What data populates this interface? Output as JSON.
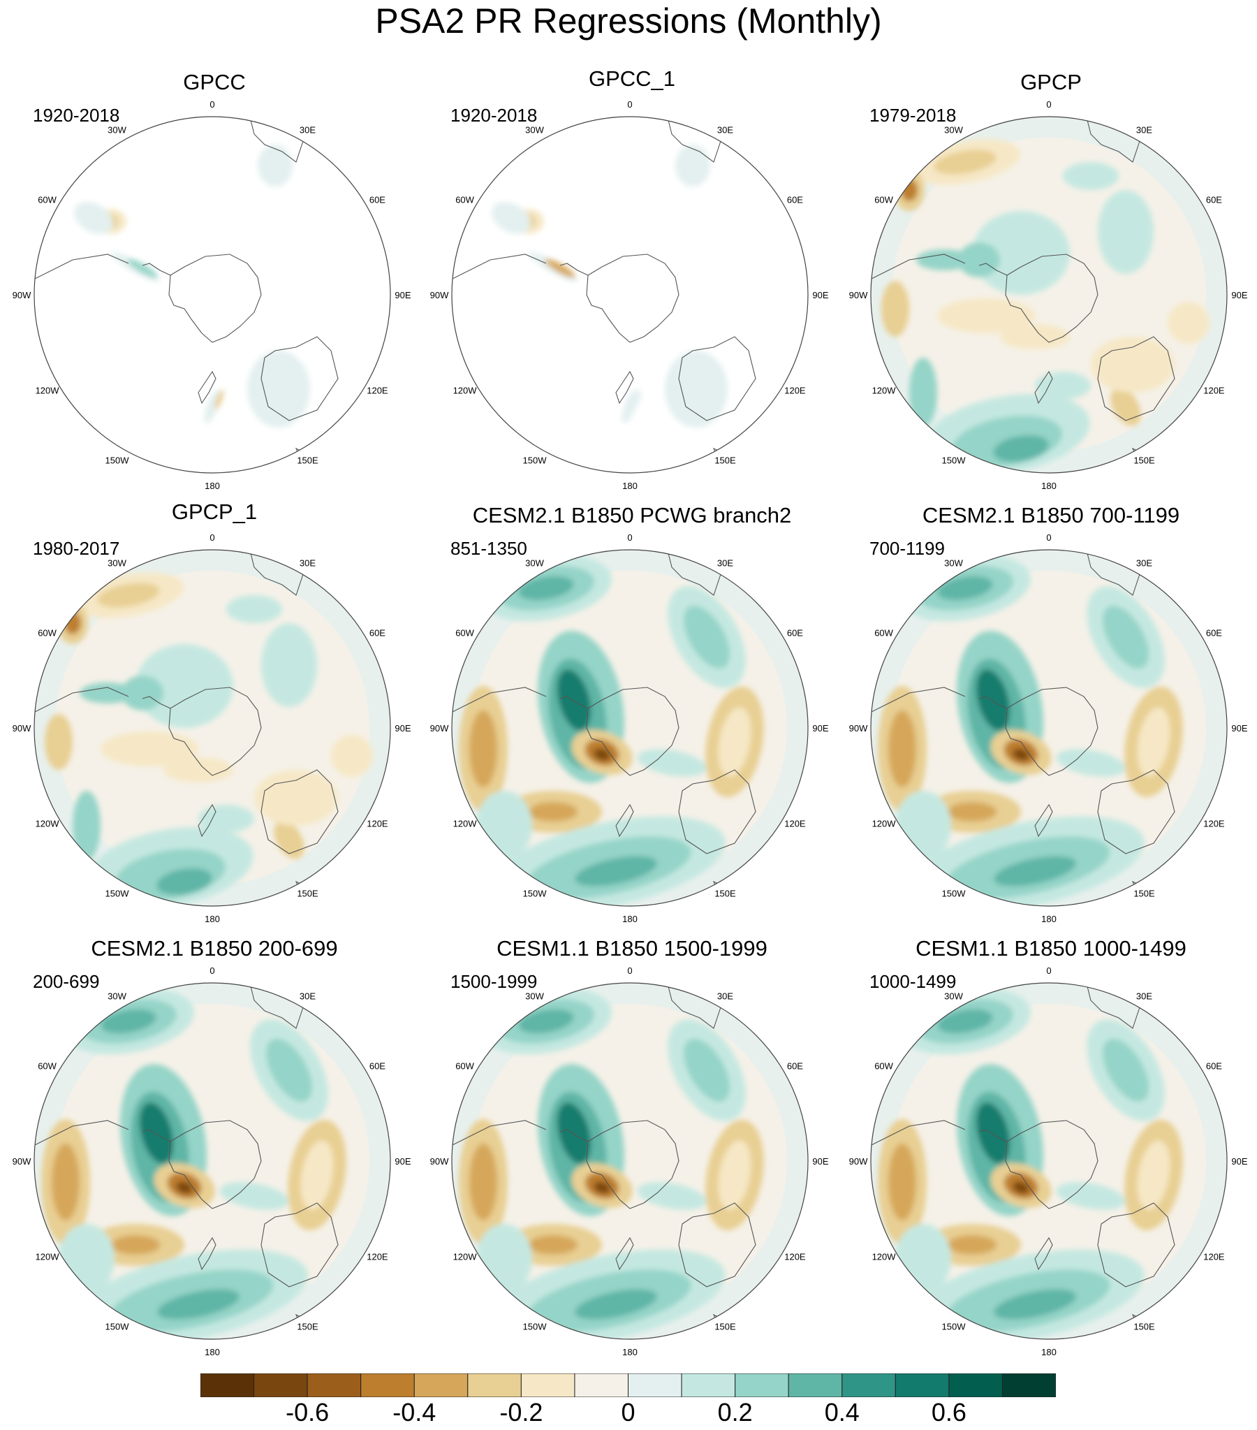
{
  "title": "PSA2 PR Regressions (Monthly)",
  "longitude_labels": [
    "0",
    "30E",
    "60E",
    "90E",
    "120E",
    "150E",
    "180",
    "150W",
    "120W",
    "90W",
    "60W",
    "30W"
  ],
  "panels": [
    {
      "name": "GPCC",
      "period": "1920-2018",
      "style": "obs_land"
    },
    {
      "name": "GPCC_1",
      "period": "1920-2018",
      "style": "obs_land"
    },
    {
      "name": "GPCP",
      "period": "1979-2018",
      "style": "obs_full"
    },
    {
      "name": "GPCP_1",
      "period": "1980-2017",
      "style": "obs_full"
    },
    {
      "name": "CESM2.1 B1850 PCWG branch2",
      "period": "851-1350",
      "style": "model"
    },
    {
      "name": "CESM2.1 B1850 700-1199",
      "period": "700-1199",
      "style": "model"
    },
    {
      "name": "CESM2.1 B1850 200-699",
      "period": "200-699",
      "style": "model"
    },
    {
      "name": "CESM1.1 B1850 1500-1999",
      "period": "1500-1999",
      "style": "model"
    },
    {
      "name": "CESM1.1 B1850 1000-1499",
      "period": "1000-1499",
      "style": "model"
    }
  ],
  "colorbar": {
    "colors": [
      "#5b3207",
      "#7a4610",
      "#9c5e1b",
      "#bd7e2e",
      "#d6a75a",
      "#e8cf93",
      "#f6e8c6",
      "#f5f1e8",
      "#e3f0ef",
      "#c4e8e1",
      "#95d4c8",
      "#5fb5a6",
      "#2f9587",
      "#137b6d",
      "#025f4f",
      "#013f33"
    ],
    "tick_labels": [
      "-0.6",
      "-0.4",
      "-0.2",
      "0",
      "0.2",
      "0.4",
      "0.6"
    ]
  }
}
